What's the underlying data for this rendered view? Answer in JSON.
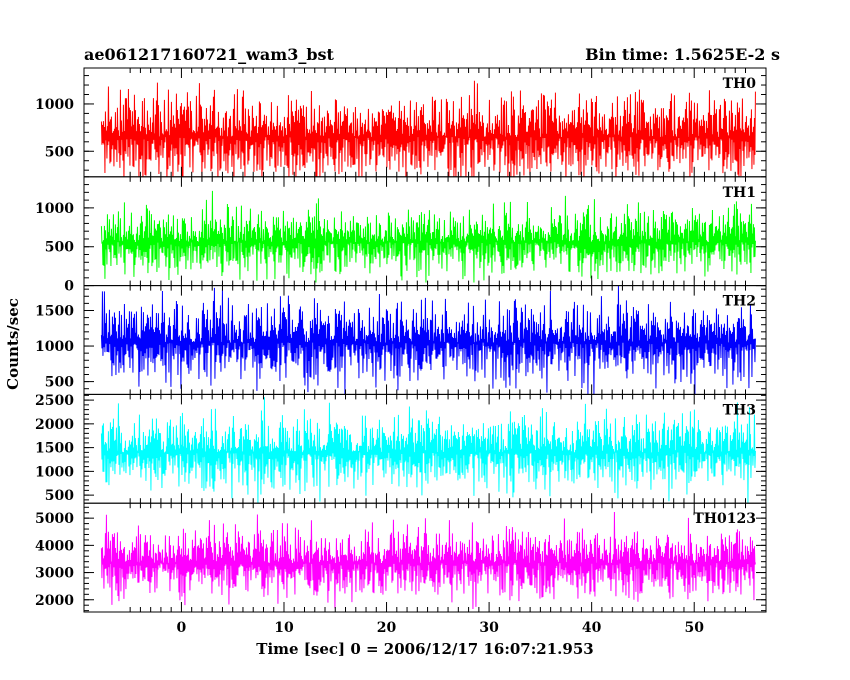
{
  "chart_data": {
    "type": "line",
    "title": "ae061217160721_wam3_bst",
    "subtitle": "Bin time: 1.5625E-2 s",
    "xlabel": "Time [sec] 0 = 2006/12/17 16:07:21.953",
    "ylabel": "Counts/sec",
    "xlim": [
      -9.5,
      57
    ],
    "x_range_data": [
      -7.8,
      56
    ],
    "x_ticks": [
      0,
      10,
      20,
      30,
      40,
      50
    ],
    "x_tick_labels": [
      "0",
      "10",
      "20",
      "30",
      "40",
      "50"
    ],
    "grid": false,
    "panels": [
      {
        "name": "TH0",
        "color": "#ff0000",
        "ylim": [
          230,
          1380
        ],
        "y_ticks": [
          500,
          1000
        ],
        "y_tick_labels": [
          "500",
          "1000"
        ],
        "mean": 650,
        "spread": 310,
        "min": 180,
        "max": 1320
      },
      {
        "name": "TH1",
        "color": "#00ff00",
        "ylim": [
          0,
          1400
        ],
        "y_ticks": [
          0,
          500,
          1000
        ],
        "y_tick_labels": [
          "0",
          "500",
          "1000"
        ],
        "mean": 560,
        "spread": 290,
        "min": 40,
        "max": 1320
      },
      {
        "name": "TH2",
        "color": "#0000ff",
        "ylim": [
          320,
          1850
        ],
        "y_ticks": [
          500,
          1000,
          1500
        ],
        "y_tick_labels": [
          "500",
          "1000",
          "1500"
        ],
        "mean": 1050,
        "spread": 390,
        "min": 320,
        "max": 1850
      },
      {
        "name": "TH3",
        "color": "#00ffff",
        "ylim": [
          330,
          2620
        ],
        "y_ticks": [
          500,
          1000,
          1500,
          2000,
          2500
        ],
        "y_tick_labels": [
          "500",
          "1000",
          "1500",
          "2000",
          "2500"
        ],
        "mean": 1400,
        "spread": 520,
        "min": 330,
        "max": 2560
      },
      {
        "name": "TH0123",
        "color": "#ff00ff",
        "ylim": [
          1550,
          5550
        ],
        "y_ticks": [
          2000,
          3000,
          4000,
          5000
        ],
        "y_tick_labels": [
          "2000",
          "3000",
          "4000",
          "5000"
        ],
        "mean": 3350,
        "spread": 880,
        "min": 1550,
        "max": 5250
      }
    ]
  }
}
